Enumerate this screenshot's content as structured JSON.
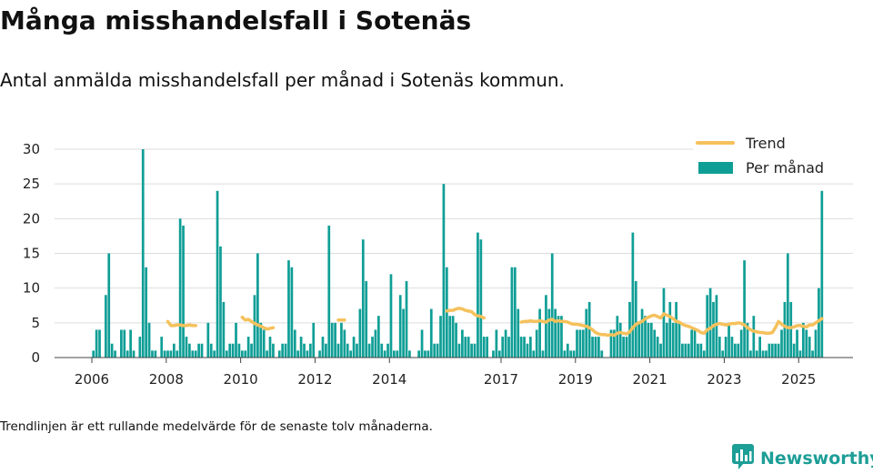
{
  "header": {
    "title": "Många misshandelsfall i Sotenäs",
    "subtitle": "Antal anmälda misshandelsfall per månad i Sotenäs kommun."
  },
  "footer": {
    "note": "Trendlinjen är ett rullande medelvärde för de senaste tolv månaderna.",
    "brand": "Newsworthy",
    "brand_icon": "bar-chart-logo-icon"
  },
  "colors": {
    "bars": "#0f9e96",
    "trend": "#f5c15c",
    "grid": "#dddddd",
    "brand": "#1d9e97"
  },
  "chart_data": {
    "type": "bar",
    "start_month": "2006-01",
    "y_ticks": [
      0,
      5,
      10,
      15,
      20,
      25,
      30
    ],
    "ylim": [
      0,
      30
    ],
    "x_ticks": [
      "2006",
      "2008",
      "2010",
      "2012",
      "2014",
      "2017",
      "2019",
      "2021",
      "2023",
      "2025"
    ],
    "grid": true,
    "legend_position": "top-right",
    "series": [
      {
        "name": "Per månad",
        "kind": "bar",
        "values": [
          1,
          4,
          4,
          0,
          9,
          15,
          2,
          1,
          0,
          4,
          4,
          1,
          4,
          1,
          0,
          3,
          30,
          13,
          5,
          1,
          1,
          0,
          3,
          1,
          1,
          1,
          2,
          1,
          20,
          19,
          3,
          2,
          1,
          1,
          2,
          2,
          0,
          5,
          2,
          1,
          24,
          16,
          8,
          1,
          2,
          2,
          5,
          2,
          1,
          1,
          3,
          2,
          9,
          15,
          5,
          4,
          1,
          3,
          2,
          0,
          1,
          2,
          2,
          14,
          13,
          4,
          1,
          3,
          2,
          1,
          2,
          5,
          0,
          1,
          3,
          2,
          19,
          5,
          5,
          2,
          5,
          4,
          2,
          1,
          3,
          2,
          7,
          17,
          11,
          2,
          3,
          4,
          6,
          2,
          1,
          2,
          12,
          1,
          1,
          9,
          7,
          11,
          1,
          0,
          0,
          1,
          4,
          1,
          1,
          7,
          2,
          2,
          6,
          25,
          13,
          6,
          6,
          5,
          2,
          4,
          3,
          3,
          2,
          2,
          18,
          17,
          3,
          3,
          0,
          1,
          4,
          1,
          3,
          4,
          3,
          13,
          13,
          7,
          3,
          3,
          2,
          3,
          1,
          4,
          7,
          1,
          9,
          7,
          15,
          7,
          6,
          6,
          1,
          2,
          1,
          1,
          4,
          4,
          4,
          7,
          8,
          3,
          3,
          3,
          1,
          0,
          0,
          4,
          4,
          6,
          5,
          3,
          3,
          8,
          18,
          11,
          5,
          7,
          6,
          5,
          5,
          4,
          3,
          2,
          10,
          5,
          8,
          5,
          8,
          5,
          2,
          2,
          2,
          4,
          4,
          2,
          2,
          1,
          9,
          10,
          8,
          9,
          3,
          1,
          3,
          5,
          3,
          2,
          2,
          4,
          14,
          5,
          1,
          6,
          1,
          3,
          1,
          1,
          2,
          2,
          2,
          2,
          4,
          8,
          15,
          8,
          2,
          4,
          1,
          5,
          4,
          3,
          1,
          4,
          10,
          24
        ]
      },
      {
        "name": "Trend",
        "kind": "line",
        "values": [
          null,
          null,
          null,
          null,
          null,
          null,
          null,
          null,
          null,
          null,
          null,
          null,
          null,
          null,
          null,
          null,
          null,
          null,
          null,
          null,
          null,
          null,
          null,
          null,
          5.2,
          4.6,
          4.6,
          4.7,
          4.7,
          4.6,
          4.6,
          4.7,
          4.6,
          4.6,
          null,
          null,
          null,
          null,
          null,
          null,
          null,
          null,
          null,
          null,
          null,
          null,
          null,
          null,
          5.8,
          5.4,
          5.5,
          5.2,
          4.9,
          4.7,
          4.5,
          4.3,
          4.1,
          4.2,
          4.3,
          null,
          null,
          null,
          null,
          null,
          null,
          null,
          null,
          null,
          null,
          null,
          null,
          null,
          null,
          null,
          null,
          null,
          null,
          null,
          null,
          5.4,
          5.4,
          5.4,
          null,
          null,
          null,
          null,
          null,
          null,
          null,
          null,
          null,
          null,
          null,
          null,
          null,
          null,
          null,
          null,
          null,
          null,
          null,
          null,
          null,
          null,
          null,
          null,
          null,
          null,
          null,
          null,
          null,
          null,
          null,
          null,
          6.7,
          6.8,
          6.8,
          7.0,
          7.1,
          7.0,
          6.8,
          6.7,
          6.6,
          6.2,
          6.0,
          5.9,
          5.7,
          null,
          null,
          null,
          null,
          null,
          null,
          null,
          null,
          null,
          null,
          null,
          5.1,
          5.2,
          5.2,
          5.3,
          5.2,
          5.2,
          5.3,
          5.2,
          5.1,
          5.4,
          5.5,
          5.2,
          5.3,
          5.2,
          5.2,
          5.1,
          4.9,
          4.8,
          4.8,
          4.7,
          4.6,
          4.5,
          4.3,
          4.0,
          3.6,
          3.4,
          3.3,
          3.3,
          3.2,
          3.3,
          3.2,
          3.5,
          3.6,
          3.5,
          3.4,
          3.7,
          4.3,
          4.8,
          5.0,
          5.2,
          5.6,
          5.8,
          6.0,
          6.1,
          5.9,
          5.7,
          6.3,
          6.1,
          5.9,
          5.6,
          5.2,
          5.1,
          4.8,
          4.6,
          4.5,
          4.3,
          4.1,
          3.9,
          3.6,
          3.5,
          4.0,
          4.2,
          4.6,
          4.8,
          4.9,
          4.8,
          4.7,
          4.8,
          4.9,
          4.9,
          5.0,
          4.9,
          4.7,
          4.3,
          4.0,
          3.8,
          3.7,
          3.6,
          3.6,
          3.5,
          3.5,
          3.6,
          4.3,
          5.2,
          4.8,
          4.5,
          4.3,
          4.3,
          4.4,
          4.6,
          4.6,
          4.5,
          4.4,
          4.7,
          4.7,
          5.0,
          5.3,
          5.6
        ]
      }
    ]
  }
}
